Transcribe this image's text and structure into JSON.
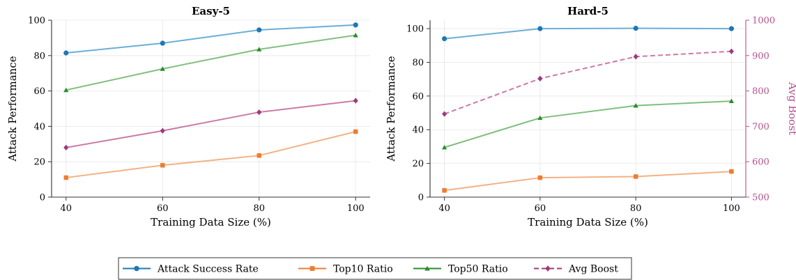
{
  "chart_data": [
    {
      "type": "line",
      "title": "Easy-5",
      "xlabel": "Training Data Size (%)",
      "ylabel": "Attack Performance",
      "x": [
        40,
        60,
        80,
        100
      ],
      "xlim": [
        37,
        103
      ],
      "ylim": [
        0,
        100
      ],
      "xticks": [
        40,
        60,
        80,
        100
      ],
      "yticks": [
        0,
        20,
        40,
        60,
        80,
        100
      ],
      "grid": true,
      "series": [
        {
          "name": "Attack Success Rate",
          "values": [
            81.5,
            87,
            94.5,
            97.3
          ],
          "color": "#6baed6",
          "marker": "circle",
          "marker_color": "#1f77b4",
          "dashed": false
        },
        {
          "name": "Top10 Ratio",
          "values": [
            11,
            18,
            23.5,
            37
          ],
          "color": "#f4b183",
          "marker": "square",
          "marker_color": "#ed7d31",
          "dashed": false
        },
        {
          "name": "Top50 Ratio",
          "values": [
            60.5,
            72.5,
            83.5,
            91.5
          ],
          "color": "#7fbf7f",
          "marker": "triangle",
          "marker_color": "#2a8c2a",
          "dashed": false
        },
        {
          "name": "Avg Boost",
          "values": [
            28,
            37.5,
            48,
            54.5
          ],
          "color": "#cc79a7",
          "marker": "diamond",
          "marker_color": "#9e3a7f",
          "dashed": false
        }
      ]
    },
    {
      "type": "line",
      "title": "Hard-5",
      "xlabel": "Training Data Size (%)",
      "ylabel": "Attack Performance",
      "y2label": "Avg Boost",
      "x": [
        40,
        60,
        80,
        100
      ],
      "xlim": [
        37,
        103
      ],
      "ylim": [
        0,
        105
      ],
      "y2lim": [
        500,
        1000
      ],
      "xticks": [
        40,
        60,
        80,
        100
      ],
      "yticks": [
        0,
        20,
        40,
        60,
        80,
        100
      ],
      "y2ticks": [
        500,
        600,
        700,
        800,
        900,
        1000
      ],
      "grid": true,
      "series": [
        {
          "name": "Attack Success Rate",
          "axis": "left",
          "values": [
            94,
            100,
            100.2,
            100
          ],
          "color": "#6baed6",
          "marker": "circle",
          "marker_color": "#1f77b4",
          "dashed": false
        },
        {
          "name": "Top10 Ratio",
          "axis": "left",
          "values": [
            4,
            11.5,
            12.2,
            15.2
          ],
          "color": "#f4b183",
          "marker": "square",
          "marker_color": "#ed7d31",
          "dashed": false
        },
        {
          "name": "Top50 Ratio",
          "axis": "left",
          "values": [
            29.5,
            47,
            54.3,
            57
          ],
          "color": "#7fbf7f",
          "marker": "triangle",
          "marker_color": "#2a8c2a",
          "dashed": false
        },
        {
          "name": "Avg Boost",
          "axis": "right",
          "values": [
            735,
            835,
            897,
            912
          ],
          "color": "#cc79a7",
          "marker": "diamond",
          "marker_color": "#9e3a7f",
          "dashed": true
        }
      ]
    }
  ],
  "legend": {
    "position": "bottom-center",
    "items": [
      {
        "label": "Attack Success Rate",
        "color": "#1f77b4",
        "marker": "circle",
        "dashed": false
      },
      {
        "label": "Top10 Ratio",
        "color": "#ed7d31",
        "marker": "square",
        "dashed": false
      },
      {
        "label": "Top50 Ratio",
        "color": "#2a8c2a",
        "marker": "triangle",
        "dashed": false
      },
      {
        "label": "Avg Boost",
        "color": "#9e3a7f",
        "marker": "diamond",
        "dashed": true
      }
    ]
  },
  "colors": {
    "axis": "#333333",
    "grid": "#e6e6e6",
    "right_axis": "#b5508f"
  }
}
